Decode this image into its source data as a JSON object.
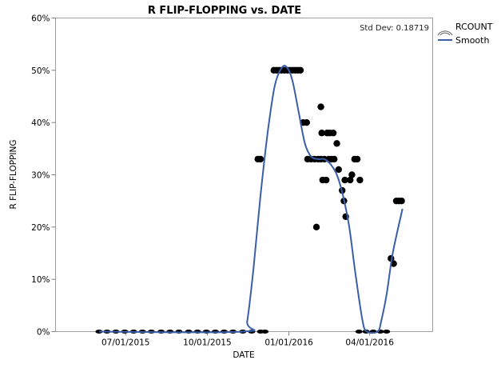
{
  "chart_data": {
    "type": "scatter",
    "title": "R FLIP-FLOPPING vs. DATE",
    "xlabel": "DATE",
    "ylabel": "R FLIP-FLOPPING",
    "x_ticks": [
      "07/01/2015",
      "10/01/2015",
      "01/01/2016",
      "04/01/2016"
    ],
    "y_ticks": [
      "0%",
      "10%",
      "20%",
      "30%",
      "40%",
      "50%",
      "60%"
    ],
    "ylim": [
      0,
      0.6
    ],
    "xlim": [
      "2015-04-13",
      "2016-06-11"
    ],
    "grid": false,
    "annotation": "Std Dev: 0.18719",
    "legend": {
      "position": "right",
      "entries": [
        {
          "label": "RCOUNT",
          "kind": "marker-size"
        },
        {
          "label": "Smooth",
          "kind": "line",
          "color": "#3a5ea8"
        }
      ]
    },
    "series": [
      {
        "name": "RCOUNT",
        "kind": "points",
        "color": "#000000",
        "points": [
          [
            "2015-06-01",
            0
          ],
          [
            "2015-06-10",
            0
          ],
          [
            "2015-06-20",
            0
          ],
          [
            "2015-06-30",
            0
          ],
          [
            "2015-07-10",
            0
          ],
          [
            "2015-07-20",
            0
          ],
          [
            "2015-07-30",
            0
          ],
          [
            "2015-08-10",
            0
          ],
          [
            "2015-08-20",
            0
          ],
          [
            "2015-08-30",
            0
          ],
          [
            "2015-09-10",
            0
          ],
          [
            "2015-09-20",
            0
          ],
          [
            "2015-09-30",
            0
          ],
          [
            "2015-10-10",
            0
          ],
          [
            "2015-10-20",
            0
          ],
          [
            "2015-10-30",
            0
          ],
          [
            "2015-11-10",
            0
          ],
          [
            "2015-11-20",
            0
          ],
          [
            "2015-11-30",
            0
          ],
          [
            "2015-12-05",
            0
          ],
          [
            "2015-11-27",
            0.33
          ],
          [
            "2015-11-30",
            0.33
          ],
          [
            "2015-12-15",
            0.5
          ],
          [
            "2015-12-18",
            0.5
          ],
          [
            "2015-12-21",
            0.5
          ],
          [
            "2015-12-24",
            0.5
          ],
          [
            "2015-12-27",
            0.5
          ],
          [
            "2015-12-30",
            0.5
          ],
          [
            "2016-01-02",
            0.5
          ],
          [
            "2016-01-05",
            0.5
          ],
          [
            "2016-01-08",
            0.5
          ],
          [
            "2016-01-11",
            0.5
          ],
          [
            "2016-01-14",
            0.5
          ],
          [
            "2016-01-17",
            0.4
          ],
          [
            "2016-01-21",
            0.4
          ],
          [
            "2016-01-22",
            0.33
          ],
          [
            "2016-01-26",
            0.33
          ],
          [
            "2016-01-30",
            0.33
          ],
          [
            "2016-02-03",
            0.33
          ],
          [
            "2016-02-06",
            0.33
          ],
          [
            "2016-02-10",
            0.33
          ],
          [
            "2016-02-15",
            0.33
          ],
          [
            "2016-02-18",
            0.33
          ],
          [
            "2016-02-21",
            0.33
          ],
          [
            "2016-03-15",
            0.33
          ],
          [
            "2016-03-18",
            0.33
          ],
          [
            "2016-02-06",
            0.43
          ],
          [
            "2016-02-01",
            0.2
          ],
          [
            "2016-02-07",
            0.38
          ],
          [
            "2016-02-13",
            0.38
          ],
          [
            "2016-02-16",
            0.38
          ],
          [
            "2016-02-20",
            0.38
          ],
          [
            "2016-02-24",
            0.36
          ],
          [
            "2016-02-08",
            0.29
          ],
          [
            "2016-02-12",
            0.29
          ],
          [
            "2016-03-04",
            0.29
          ],
          [
            "2016-03-10",
            0.29
          ],
          [
            "2016-03-21",
            0.29
          ],
          [
            "2016-02-26",
            0.31
          ],
          [
            "2016-03-01",
            0.27
          ],
          [
            "2016-03-03",
            0.25
          ],
          [
            "2016-03-05",
            0.22
          ],
          [
            "2016-03-12",
            0.3
          ],
          [
            "2016-03-20",
            0
          ],
          [
            "2016-03-28",
            0
          ],
          [
            "2016-04-05",
            0
          ],
          [
            "2016-04-13",
            0
          ],
          [
            "2016-04-20",
            0
          ],
          [
            "2016-04-25",
            0.14
          ],
          [
            "2016-04-28",
            0.13
          ],
          [
            "2016-05-01",
            0.25
          ],
          [
            "2016-05-04",
            0.25
          ],
          [
            "2016-05-07",
            0.25
          ]
        ]
      },
      {
        "name": "Smooth",
        "kind": "line",
        "color": "#3a5ea8",
        "points": [
          [
            "2015-06-01",
            0
          ],
          [
            "2015-11-10",
            0
          ],
          [
            "2015-11-15",
            0.02
          ],
          [
            "2015-11-22",
            0.12
          ],
          [
            "2015-11-30",
            0.26
          ],
          [
            "2015-12-08",
            0.38
          ],
          [
            "2015-12-16",
            0.47
          ],
          [
            "2015-12-24",
            0.505
          ],
          [
            "2015-12-30",
            0.505
          ],
          [
            "2016-01-05",
            0.48
          ],
          [
            "2016-01-12",
            0.42
          ],
          [
            "2016-01-19",
            0.36
          ],
          [
            "2016-01-26",
            0.335
          ],
          [
            "2016-02-03",
            0.33
          ],
          [
            "2016-02-10",
            0.33
          ],
          [
            "2016-02-17",
            0.32
          ],
          [
            "2016-02-24",
            0.3
          ],
          [
            "2016-03-02",
            0.26
          ],
          [
            "2016-03-09",
            0.2
          ],
          [
            "2016-03-16",
            0.11
          ],
          [
            "2016-03-24",
            0.02
          ],
          [
            "2016-03-29",
            0
          ],
          [
            "2016-04-10",
            0
          ],
          [
            "2016-04-14",
            0.02
          ],
          [
            "2016-04-20",
            0.07
          ],
          [
            "2016-04-27",
            0.15
          ],
          [
            "2016-05-08",
            0.235
          ]
        ]
      }
    ]
  }
}
